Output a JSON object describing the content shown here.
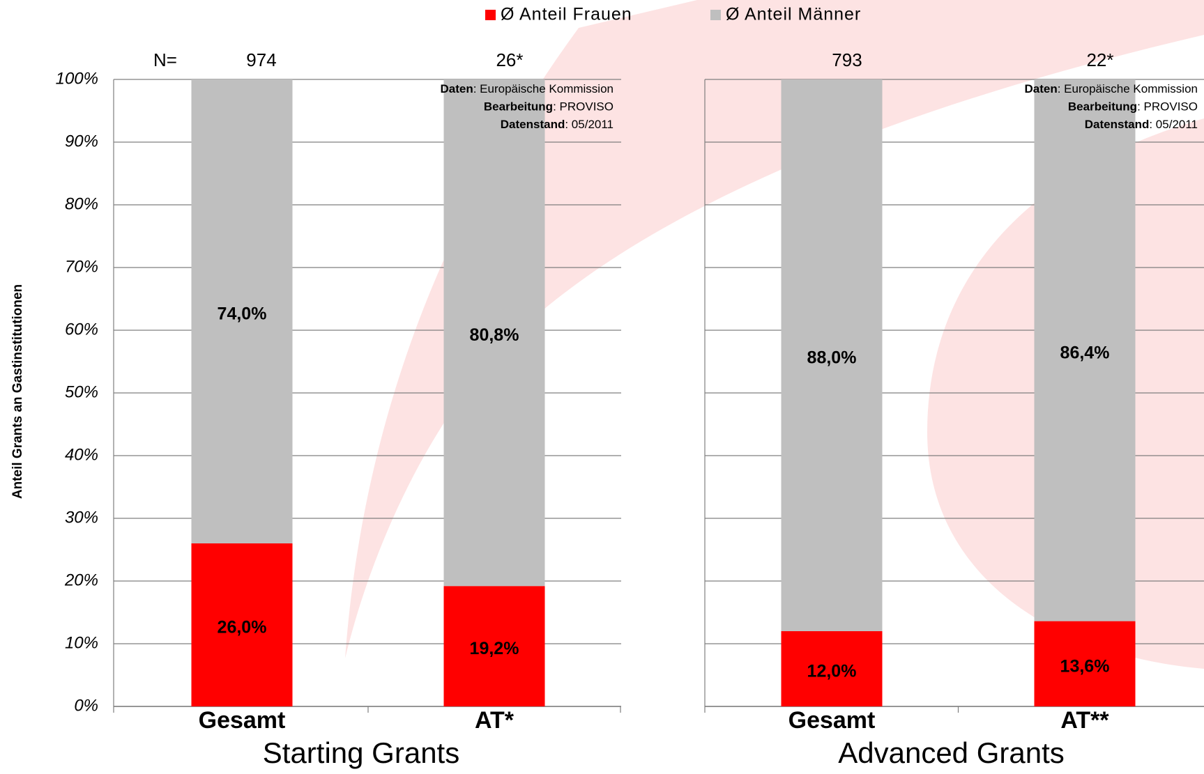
{
  "chart_data": [
    {
      "type": "bar",
      "stacked": true,
      "x_title": "Starting Grants",
      "y_label": "Anteil Grants an Gastinstitutionen",
      "categories": [
        "Gesamt",
        "AT*"
      ],
      "n_label": "N=",
      "n_values": [
        "974",
        "26*"
      ],
      "series": [
        {
          "name": "Ø Anteil Frauen",
          "color": "#ff0000",
          "values": [
            26.0,
            19.2
          ],
          "value_labels": [
            "26,0%",
            "19,2%"
          ]
        },
        {
          "name": "Ø Anteil Männer",
          "color": "#bfbfbf",
          "values": [
            74.0,
            80.8
          ],
          "value_labels": [
            "74,0%",
            "80,8%"
          ]
        }
      ],
      "ylim": [
        0,
        100
      ],
      "yticks": [
        {
          "value": 0,
          "label": "0%"
        },
        {
          "value": 10,
          "label": "10%"
        },
        {
          "value": 20,
          "label": "20%"
        },
        {
          "value": 30,
          "label": "30%"
        },
        {
          "value": 40,
          "label": "40%"
        },
        {
          "value": 50,
          "label": "50%"
        },
        {
          "value": 60,
          "label": "60%"
        },
        {
          "value": 70,
          "label": "70%"
        },
        {
          "value": 80,
          "label": "80%"
        },
        {
          "value": 90,
          "label": "90%"
        },
        {
          "value": 100,
          "label": "100%"
        }
      ],
      "grid": true,
      "source": [
        [
          "Daten",
          ": Europäische Kommission"
        ],
        [
          "Bearbeitung",
          ": PROVISO"
        ],
        [
          "Datenstand",
          ": 05/2011"
        ]
      ]
    },
    {
      "type": "bar",
      "stacked": true,
      "x_title": "Advanced Grants",
      "categories": [
        "Gesamt",
        "AT**"
      ],
      "n_values": [
        "793",
        "22*"
      ],
      "series": [
        {
          "color": "#ff0000",
          "values": [
            12.0,
            13.6
          ],
          "value_labels": [
            "12,0%",
            "13,6%"
          ]
        },
        {
          "color": "#bfbfbf",
          "values": [
            88.0,
            86.4
          ],
          "value_labels": [
            "88,0%",
            "86,4%"
          ]
        }
      ],
      "ylim": [
        0,
        100
      ],
      "yticks": [
        0,
        10,
        20,
        30,
        40,
        50,
        60,
        70,
        80,
        90,
        100
      ],
      "grid": true,
      "source": [
        [
          "Daten",
          ": Europäische Kommission"
        ],
        [
          "Bearbeitung",
          ": PROVISO"
        ],
        [
          "Datenstand",
          ": 05/2011"
        ]
      ]
    }
  ]
}
